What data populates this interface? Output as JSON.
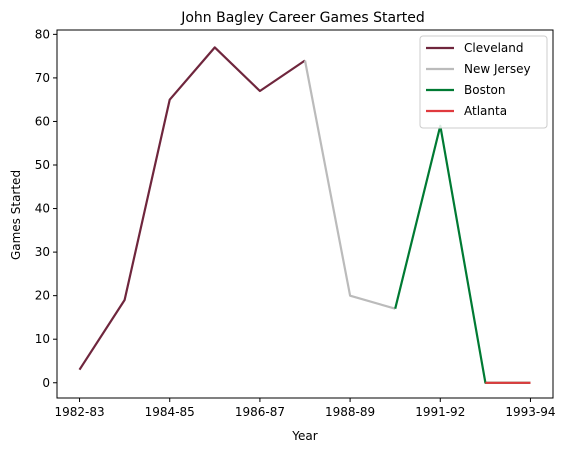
{
  "chart_data": {
    "type": "line",
    "title": "John Bagley  Career Games Started",
    "xlabel": "Year",
    "ylabel": "Games Started",
    "x_tick_labels": [
      "1982-83",
      "1984-85",
      "1986-87",
      "1988-89",
      "1991-92",
      "1993-94"
    ],
    "y_ticks": [
      0,
      10,
      20,
      30,
      40,
      50,
      60,
      70,
      80
    ],
    "ylim": [
      -3.5,
      81
    ],
    "grid": false,
    "legend_placement": "top-right",
    "series": [
      {
        "name": "Cleveland",
        "color": "#6F263D",
        "points": [
          [
            0,
            3
          ],
          [
            1,
            19
          ],
          [
            2,
            65
          ],
          [
            3,
            77
          ],
          [
            4,
            67
          ],
          [
            5,
            74
          ]
        ]
      },
      {
        "name": "New Jersey",
        "color": "#BBBBBB",
        "points": [
          [
            5,
            74
          ],
          [
            6,
            20
          ],
          [
            7,
            17
          ]
        ]
      },
      {
        "name": "Boston",
        "color": "#007A33",
        "points": [
          [
            7,
            17
          ],
          [
            8,
            59
          ],
          [
            9,
            0
          ],
          [
            10,
            0
          ]
        ]
      },
      {
        "name": "Atlanta",
        "color": "#E03A3E",
        "points": [
          [
            9,
            0
          ],
          [
            10,
            0
          ]
        ]
      }
    ]
  }
}
